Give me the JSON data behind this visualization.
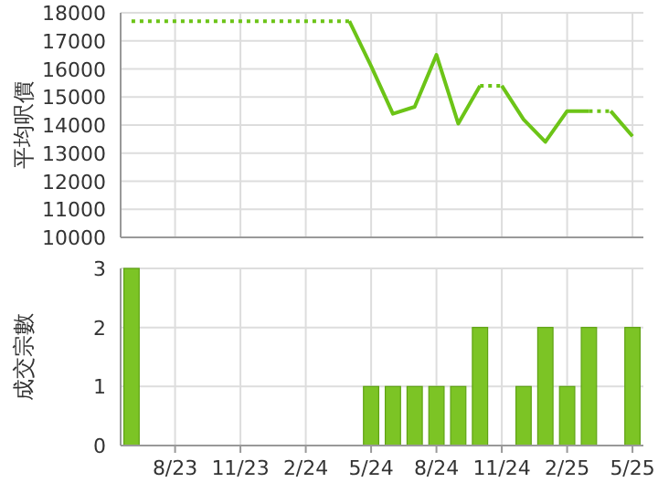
{
  "chart_data": [
    {
      "type": "line",
      "ylabel": "平均呎價",
      "categories": [
        null,
        null,
        null,
        null,
        null,
        null,
        null,
        null,
        null,
        null,
        null,
        null,
        null,
        null,
        null,
        null,
        null,
        null,
        null,
        null,
        null,
        null,
        null,
        null
      ],
      "ylim": [
        10000,
        18000
      ],
      "yticks": [
        10000,
        11000,
        12000,
        13000,
        14000,
        15000,
        16000,
        17000,
        18000
      ],
      "grid": true,
      "tick_labels": "y",
      "series": [
        {
          "color": "#6cc417",
          "line_style": "dotted",
          "values": [
            17700,
            17700,
            17700,
            17700,
            17700,
            17700,
            17700,
            17700,
            17700,
            17700,
            17700,
            null,
            null,
            null,
            null,
            null,
            15400,
            15400,
            null,
            null,
            null,
            14500,
            14500,
            null
          ]
        },
        {
          "color": "#6cc417",
          "line_style": "solid",
          "values": [
            null,
            null,
            null,
            null,
            null,
            null,
            null,
            null,
            null,
            null,
            17700,
            16100,
            14400,
            14650,
            16500,
            14050,
            15400,
            null,
            null,
            null,
            null,
            null,
            14500,
            13600
          ]
        },
        {
          "color": "#6cc417",
          "line_style": "solid",
          "values": [
            null,
            null,
            null,
            null,
            null,
            null,
            null,
            null,
            null,
            null,
            null,
            null,
            null,
            null,
            null,
            null,
            null,
            15400,
            14200,
            13400,
            14500,
            14500,
            null,
            null
          ]
        }
      ]
    },
    {
      "type": "bar",
      "ylabel": "成交宗數",
      "categories": [
        null,
        null,
        "8/23",
        null,
        null,
        "11/23",
        null,
        null,
        "2/24",
        null,
        null,
        "5/24",
        null,
        null,
        "8/24",
        null,
        null,
        "11/24",
        null,
        null,
        "2/25",
        null,
        null,
        "5/25"
      ],
      "ylim": [
        0,
        3
      ],
      "yticks": [
        0,
        1,
        2,
        3
      ],
      "grid": true,
      "color": "#7cc425",
      "values": [
        3,
        0,
        0,
        0,
        0,
        0,
        0,
        0,
        0,
        0,
        0,
        1,
        1,
        1,
        1,
        1,
        2,
        0,
        1,
        2,
        1,
        2,
        0,
        2
      ]
    }
  ]
}
